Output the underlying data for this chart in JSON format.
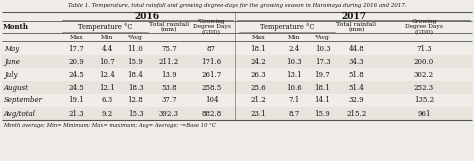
{
  "title": "Table 1. Temperature, total rainfall and growing degree-days for the growing season in Haramaya during 2016 and 2017.",
  "footnote": "Month average; Min= Minimum; Max= maximum; Avg= Average; ᵃ=Base 10 °C",
  "months": [
    "May",
    "June",
    "July",
    "August",
    "September",
    "Avg/total"
  ],
  "data_2016": [
    [
      "17.7",
      "4.4",
      "11.0",
      "75.7",
      "87"
    ],
    [
      "20.9",
      "10.7",
      "15.9",
      "211.2",
      "171.6"
    ],
    [
      "24.5",
      "12.4",
      "18.4",
      "13.9",
      "261.7"
    ],
    [
      "24.5",
      "12.1",
      "18.3",
      "53.8",
      "258.5"
    ],
    [
      "19.1",
      "6.3",
      "12.8",
      "37.7",
      "104"
    ],
    [
      "21.3",
      "9.2",
      "15.3",
      "392.3",
      "882.8"
    ]
  ],
  "data_2017": [
    [
      "18.1",
      "2.4",
      "10.3",
      "44.8",
      "71.3"
    ],
    [
      "24.2",
      "10.3",
      "17.3",
      "34.3",
      "200.0"
    ],
    [
      "26.3",
      "13.1",
      "19.7",
      "51.8",
      "302.2"
    ],
    [
      "25.6",
      "10.6",
      "18.1",
      "51.4",
      "252.3"
    ],
    [
      "21.2",
      "7.1",
      "14.1",
      "32.9",
      "135.2"
    ],
    [
      "23.1",
      "8.7",
      "15.9",
      "215.2",
      "961"
    ]
  ],
  "bg_color": "#f0ede8",
  "text_color": "#111111",
  "line_color": "#555555"
}
